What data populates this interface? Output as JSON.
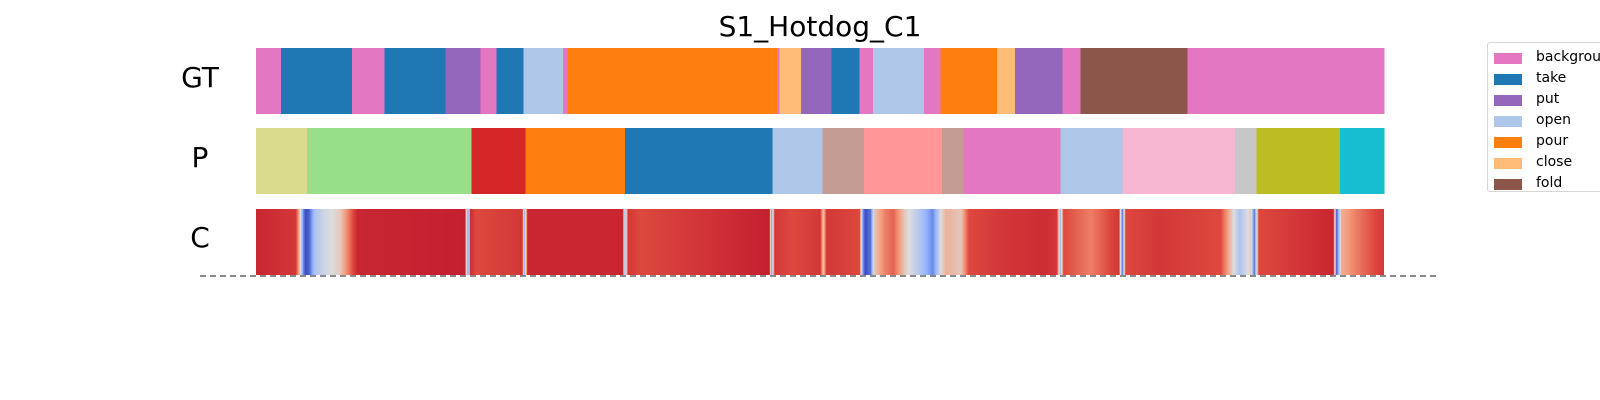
{
  "chart_data": {
    "type": "heatmap",
    "title": "S1_Hotdog_C1",
    "rows": [
      "GT",
      "P",
      "C"
    ],
    "legend": [
      {
        "label": "background",
        "color": "#e377c2"
      },
      {
        "label": "take",
        "color": "#1f77b4"
      },
      {
        "label": "put",
        "color": "#9467bd"
      },
      {
        "label": "open",
        "color": "#aec7e8"
      },
      {
        "label": "pour",
        "color": "#ff7f0e"
      },
      {
        "label": "close",
        "color": "#ffbb78"
      },
      {
        "label": "fold",
        "color": "#8c564b"
      }
    ],
    "gt_segments": [
      {
        "start": 0.0,
        "end": 0.022,
        "label": "background"
      },
      {
        "start": 0.022,
        "end": 0.085,
        "label": "take"
      },
      {
        "start": 0.085,
        "end": 0.114,
        "label": "background"
      },
      {
        "start": 0.114,
        "end": 0.168,
        "label": "take"
      },
      {
        "start": 0.168,
        "end": 0.199,
        "label": "put"
      },
      {
        "start": 0.199,
        "end": 0.213,
        "label": "background"
      },
      {
        "start": 0.213,
        "end": 0.237,
        "label": "take"
      },
      {
        "start": 0.237,
        "end": 0.272,
        "label": "open"
      },
      {
        "start": 0.272,
        "end": 0.276,
        "label": "background"
      },
      {
        "start": 0.276,
        "end": 0.462,
        "label": "pour"
      },
      {
        "start": 0.462,
        "end": 0.464,
        "label": "background"
      },
      {
        "start": 0.464,
        "end": 0.483,
        "label": "close"
      },
      {
        "start": 0.483,
        "end": 0.51,
        "label": "put"
      },
      {
        "start": 0.51,
        "end": 0.535,
        "label": "take"
      },
      {
        "start": 0.535,
        "end": 0.547,
        "label": "background"
      },
      {
        "start": 0.547,
        "end": 0.592,
        "label": "open"
      },
      {
        "start": 0.592,
        "end": 0.607,
        "label": "background"
      },
      {
        "start": 0.607,
        "end": 0.657,
        "label": "pour"
      },
      {
        "start": 0.657,
        "end": 0.673,
        "label": "close"
      },
      {
        "start": 0.673,
        "end": 0.715,
        "label": "put"
      },
      {
        "start": 0.715,
        "end": 0.731,
        "label": "background"
      },
      {
        "start": 0.731,
        "end": 0.826,
        "label": "fold"
      },
      {
        "start": 0.826,
        "end": 1.0,
        "label": "background"
      }
    ],
    "p_segments": [
      {
        "start": 0.0,
        "end": 0.045,
        "color": "#dbdb8d"
      },
      {
        "start": 0.045,
        "end": 0.191,
        "color": "#98df8a"
      },
      {
        "start": 0.191,
        "end": 0.239,
        "color": "#d62728"
      },
      {
        "start": 0.239,
        "end": 0.327,
        "color": "#ff7f0e"
      },
      {
        "start": 0.327,
        "end": 0.458,
        "color": "#1f77b4"
      },
      {
        "start": 0.458,
        "end": 0.502,
        "color": "#aec7e8"
      },
      {
        "start": 0.502,
        "end": 0.539,
        "color": "#c49c94"
      },
      {
        "start": 0.539,
        "end": 0.608,
        "color": "#ff9896"
      },
      {
        "start": 0.608,
        "end": 0.627,
        "color": "#c49c94"
      },
      {
        "start": 0.627,
        "end": 0.713,
        "color": "#e377c2"
      },
      {
        "start": 0.713,
        "end": 0.768,
        "color": "#aec7e8"
      },
      {
        "start": 0.768,
        "end": 0.868,
        "color": "#f7b6d2"
      },
      {
        "start": 0.868,
        "end": 0.887,
        "color": "#c7c7c7"
      },
      {
        "start": 0.887,
        "end": 0.961,
        "color": "#bcbd22"
      },
      {
        "start": 0.961,
        "end": 1.0,
        "color": "#17becf"
      }
    ],
    "c_confidence": [
      [
        0.0,
        0.9
      ],
      [
        0.035,
        0.85
      ],
      [
        0.039,
        0.55
      ],
      [
        0.042,
        0.15
      ],
      [
        0.044,
        0.0
      ],
      [
        0.047,
        0.05
      ],
      [
        0.052,
        0.35
      ],
      [
        0.06,
        0.45
      ],
      [
        0.075,
        0.55
      ],
      [
        0.084,
        0.75
      ],
      [
        0.09,
        0.9
      ],
      [
        0.185,
        0.92
      ],
      [
        0.188,
        0.2
      ],
      [
        0.19,
        0.88
      ],
      [
        0.195,
        0.8
      ],
      [
        0.236,
        0.85
      ],
      [
        0.238,
        0.3
      ],
      [
        0.241,
        0.9
      ],
      [
        0.325,
        0.9
      ],
      [
        0.327,
        0.3
      ],
      [
        0.33,
        0.85
      ],
      [
        0.34,
        0.8
      ],
      [
        0.455,
        0.92
      ],
      [
        0.457,
        0.25
      ],
      [
        0.46,
        0.85
      ],
      [
        0.475,
        0.8
      ],
      [
        0.5,
        0.85
      ],
      [
        0.503,
        0.55
      ],
      [
        0.506,
        0.85
      ],
      [
        0.535,
        0.8
      ],
      [
        0.538,
        0.2
      ],
      [
        0.54,
        0.0
      ],
      [
        0.545,
        0.1
      ],
      [
        0.548,
        0.55
      ],
      [
        0.558,
        0.7
      ],
      [
        0.565,
        0.75
      ],
      [
        0.575,
        0.55
      ],
      [
        0.59,
        0.35
      ],
      [
        0.6,
        0.15
      ],
      [
        0.607,
        0.5
      ],
      [
        0.612,
        0.6
      ],
      [
        0.625,
        0.55
      ],
      [
        0.632,
        0.8
      ],
      [
        0.66,
        0.85
      ],
      [
        0.7,
        0.88
      ],
      [
        0.71,
        0.85
      ],
      [
        0.713,
        0.3
      ],
      [
        0.716,
        0.8
      ],
      [
        0.74,
        0.7
      ],
      [
        0.765,
        0.85
      ],
      [
        0.768,
        0.1
      ],
      [
        0.771,
        0.8
      ],
      [
        0.8,
        0.85
      ],
      [
        0.855,
        0.8
      ],
      [
        0.865,
        0.55
      ],
      [
        0.872,
        0.35
      ],
      [
        0.882,
        0.55
      ],
      [
        0.885,
        0.1
      ],
      [
        0.889,
        0.8
      ],
      [
        0.955,
        0.9
      ],
      [
        0.958,
        0.05
      ],
      [
        0.962,
        0.6
      ],
      [
        0.975,
        0.7
      ],
      [
        1.0,
        0.85
      ]
    ]
  }
}
